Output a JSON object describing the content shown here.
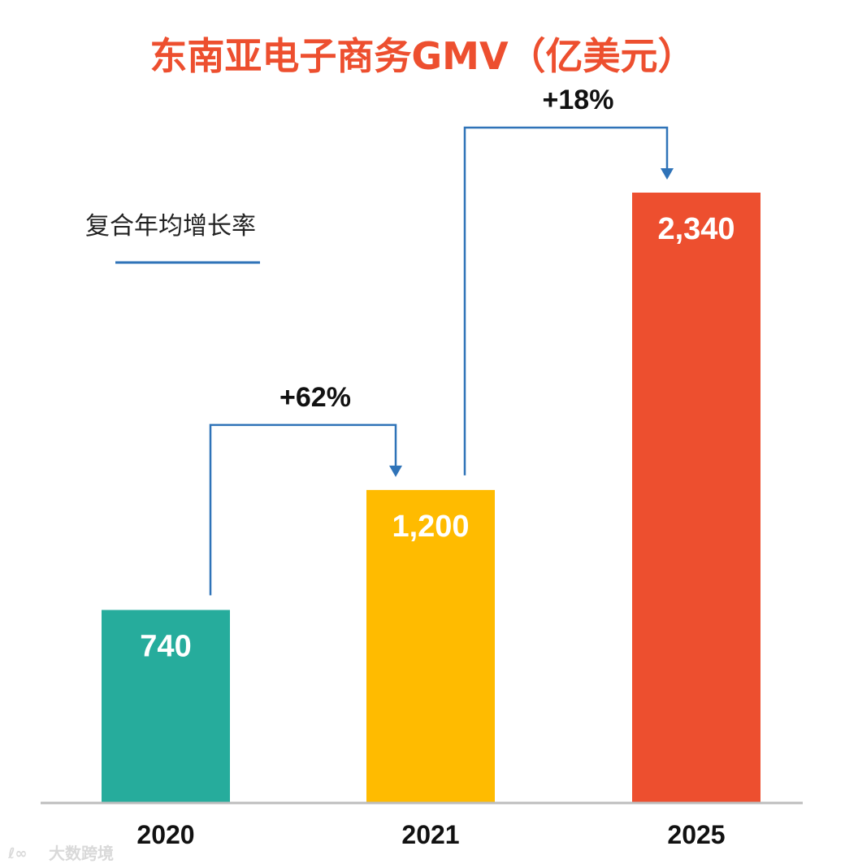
{
  "chart_data": {
    "type": "bar",
    "title": "东南亚电子商务GMV（亿美元）",
    "categories": [
      "2020",
      "2021",
      "2025"
    ],
    "values": [
      740,
      1200,
      2340
    ],
    "value_labels": [
      "740",
      "1,200",
      "2,340"
    ],
    "colors": [
      "#26AC9C",
      "#FFBB00",
      "#ED4F2F"
    ],
    "ylim": [
      0,
      2340
    ],
    "xlabel": "",
    "ylabel": "",
    "grid": false,
    "legend": {
      "label": "复合年均增长率",
      "color": "#2F73B8",
      "position": "top-left"
    },
    "growth_annotations": [
      {
        "from": "2020",
        "to": "2021",
        "label": "+62%"
      },
      {
        "from": "2021",
        "to": "2025",
        "label": "+18%"
      }
    ]
  },
  "title_color": "#ED4F2F",
  "watermark": {
    "text": "大数跨境"
  }
}
